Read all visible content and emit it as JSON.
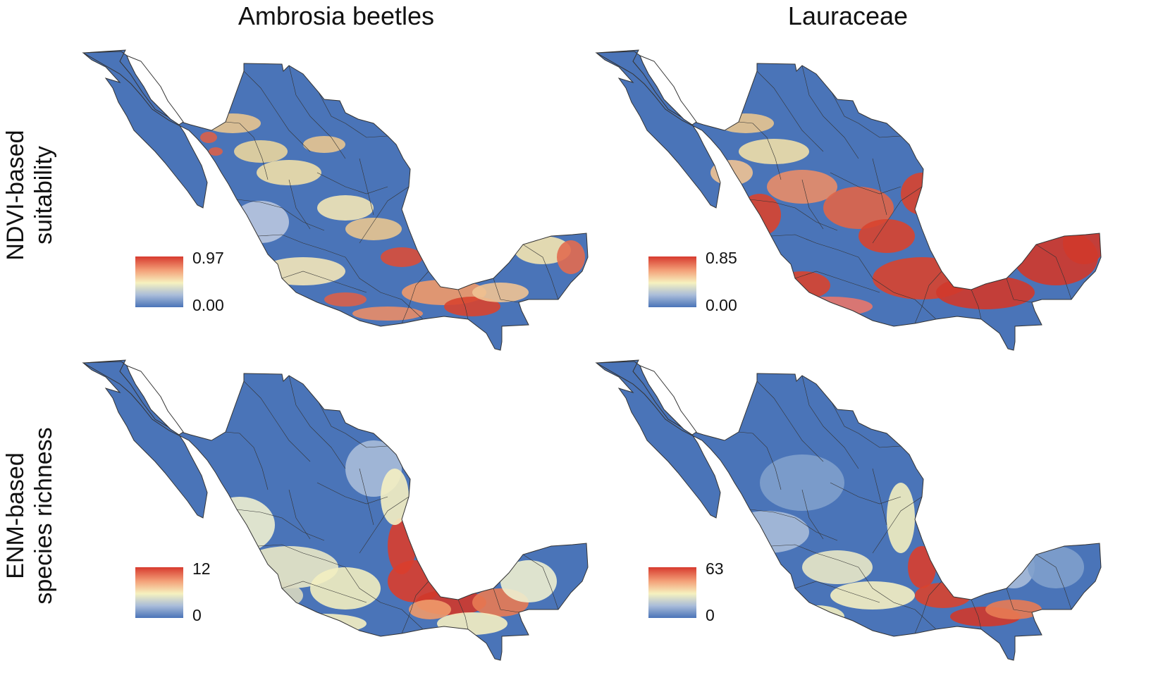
{
  "columns": [
    "Ambrosia beetles",
    "Lauraceae"
  ],
  "rows": [
    {
      "line1": "NDVI-based",
      "line2": "suitability"
    },
    {
      "line1": "ENM-based",
      "line2": "species richness"
    }
  ],
  "panels": [
    {
      "id": "ndvi-beetles",
      "legend_max": "0.97",
      "legend_min": "0.00",
      "pattern": "beetles-ndvi"
    },
    {
      "id": "ndvi-lauraceae",
      "legend_max": "0.85",
      "legend_min": "0.00",
      "pattern": "laur-ndvi"
    },
    {
      "id": "enm-beetles",
      "legend_max": "12",
      "legend_min": "0",
      "pattern": "beetles-enm"
    },
    {
      "id": "enm-lauraceae",
      "legend_max": "63",
      "legend_min": "0",
      "pattern": "laur-enm"
    }
  ],
  "colors": {
    "low": "#4a74b8",
    "mid": "#f6f1bf",
    "high": "#d73a2e",
    "border": "#333333"
  }
}
